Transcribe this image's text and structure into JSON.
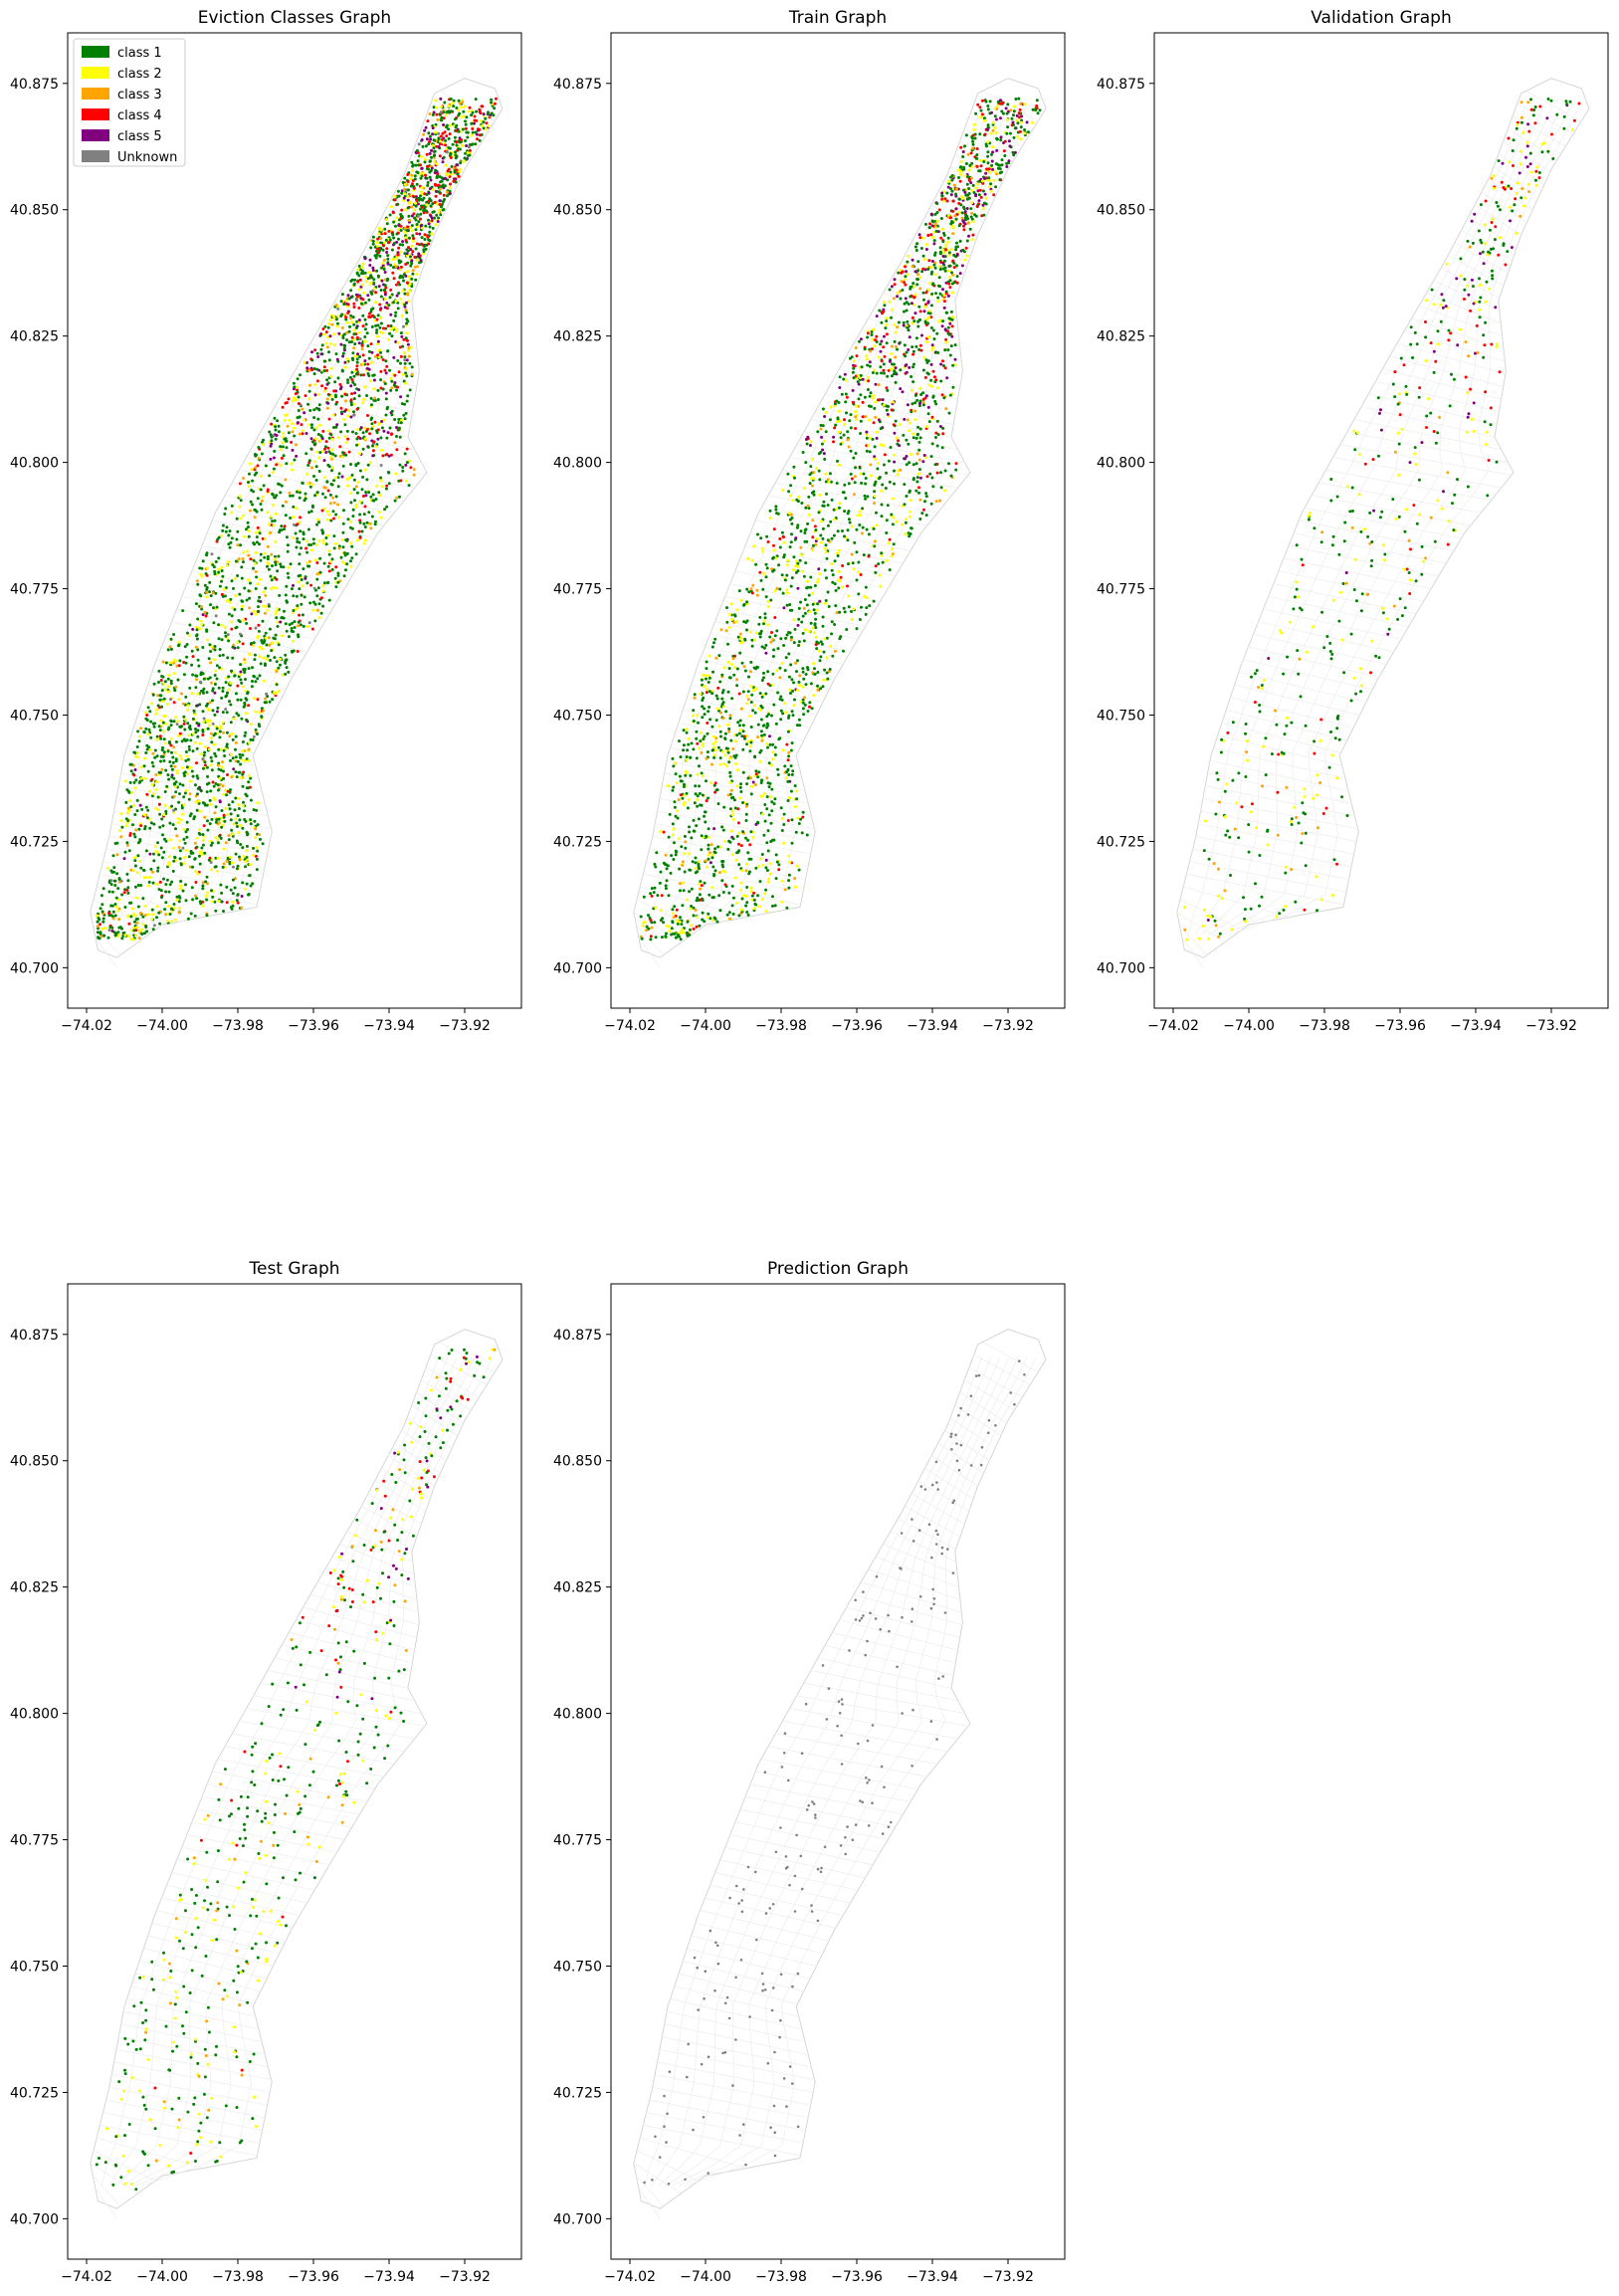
{
  "legend": {
    "placement": "top-left",
    "items": [
      {
        "label": "class 1",
        "color": "#008000"
      },
      {
        "label": "class 2",
        "color": "#ffff00"
      },
      {
        "label": "class 3",
        "color": "#ffa500"
      },
      {
        "label": "class 4",
        "color": "#ff0000"
      },
      {
        "label": "class 5",
        "color": "#800080"
      },
      {
        "label": "Unknown",
        "color": "#808080"
      }
    ]
  },
  "chart_data": [
    {
      "type": "scatter",
      "title": "Eviction Classes Graph",
      "xlabel": "",
      "ylabel": "",
      "xlim": [
        -74.025,
        -73.905
      ],
      "ylim": [
        40.692,
        40.885
      ],
      "xticks": [
        -74.02,
        -74.0,
        -73.98,
        -73.96,
        -73.94,
        -73.92
      ],
      "xtick_labels": [
        "−74.02",
        "−74.00",
        "−73.98",
        "−73.96",
        "−73.94",
        "−73.92"
      ],
      "yticks": [
        40.7,
        40.725,
        40.75,
        40.775,
        40.8,
        40.825,
        40.85,
        40.875
      ],
      "ytick_labels": [
        "40.700",
        "40.725",
        "40.750",
        "40.775",
        "40.800",
        "40.825",
        "40.850",
        "40.875"
      ],
      "grid": false,
      "legend": "top-left",
      "density": 1.0,
      "class_mix": [
        0.6,
        0.25,
        0.07,
        0.05,
        0.015,
        0.015
      ],
      "unknown_share": 0.015
    },
    {
      "type": "scatter",
      "title": "Train Graph",
      "xlabel": "",
      "ylabel": "",
      "xlim": [
        -74.025,
        -73.905
      ],
      "ylim": [
        40.692,
        40.885
      ],
      "xticks": [
        -74.02,
        -74.0,
        -73.98,
        -73.96,
        -73.94,
        -73.92
      ],
      "xtick_labels": [
        "−74.02",
        "−74.00",
        "−73.98",
        "−73.96",
        "−73.94",
        "−73.92"
      ],
      "yticks": [
        40.7,
        40.725,
        40.75,
        40.775,
        40.8,
        40.825,
        40.85,
        40.875
      ],
      "ytick_labels": [
        "40.700",
        "40.725",
        "40.750",
        "40.775",
        "40.800",
        "40.825",
        "40.850",
        "40.875"
      ],
      "grid": false,
      "density": 0.7,
      "class_mix": [
        0.6,
        0.25,
        0.07,
        0.05,
        0.015,
        0.0
      ],
      "unknown_share": 0.0
    },
    {
      "type": "scatter",
      "title": "Validation Graph",
      "xlabel": "",
      "ylabel": "",
      "xlim": [
        -74.025,
        -73.905
      ],
      "ylim": [
        40.692,
        40.885
      ],
      "xticks": [
        -74.02,
        -74.0,
        -73.98,
        -73.96,
        -73.94,
        -73.92
      ],
      "xtick_labels": [
        "−74.02",
        "−74.00",
        "−73.98",
        "−73.96",
        "−73.94",
        "−73.92"
      ],
      "yticks": [
        40.7,
        40.725,
        40.75,
        40.775,
        40.8,
        40.825,
        40.85,
        40.875
      ],
      "ytick_labels": [
        "40.700",
        "40.725",
        "40.750",
        "40.775",
        "40.800",
        "40.825",
        "40.850",
        "40.875"
      ],
      "grid": false,
      "density": 0.15,
      "class_mix": [
        0.55,
        0.25,
        0.1,
        0.07,
        0.03,
        0.0
      ],
      "unknown_share": 0.0
    },
    {
      "type": "scatter",
      "title": "Test Graph",
      "xlabel": "",
      "ylabel": "",
      "xlim": [
        -74.025,
        -73.905
      ],
      "ylim": [
        40.692,
        40.885
      ],
      "xticks": [
        -74.02,
        -74.0,
        -73.98,
        -73.96,
        -73.94,
        -73.92
      ],
      "xtick_labels": [
        "−74.02",
        "−74.00",
        "−73.98",
        "−73.96",
        "−73.94",
        "−73.92"
      ],
      "yticks": [
        40.7,
        40.725,
        40.75,
        40.775,
        40.8,
        40.825,
        40.85,
        40.875
      ],
      "ytick_labels": [
        "40.700",
        "40.725",
        "40.750",
        "40.775",
        "40.800",
        "40.825",
        "40.850",
        "40.875"
      ],
      "grid": false,
      "density": 0.15,
      "class_mix": [
        0.6,
        0.25,
        0.08,
        0.06,
        0.01,
        0.0
      ],
      "unknown_share": 0.0
    },
    {
      "type": "scatter",
      "title": "Prediction Graph",
      "xlabel": "",
      "ylabel": "",
      "xlim": [
        -74.025,
        -73.905
      ],
      "ylim": [
        40.692,
        40.885
      ],
      "xticks": [
        -74.02,
        -74.0,
        -73.98,
        -73.96,
        -73.94,
        -73.92
      ],
      "xtick_labels": [
        "−74.02",
        "−74.00",
        "−73.98",
        "−73.96",
        "−73.94",
        "−73.92"
      ],
      "yticks": [
        40.7,
        40.725,
        40.75,
        40.775,
        40.8,
        40.825,
        40.85,
        40.875
      ],
      "ytick_labels": [
        "40.700",
        "40.725",
        "40.750",
        "40.775",
        "40.800",
        "40.825",
        "40.850",
        "40.875"
      ],
      "grid": false,
      "density": 0.06,
      "class_mix": [
        0.0,
        0.0,
        0.0,
        0.0,
        0.0,
        1.0
      ],
      "unknown_share": 1.0
    }
  ]
}
